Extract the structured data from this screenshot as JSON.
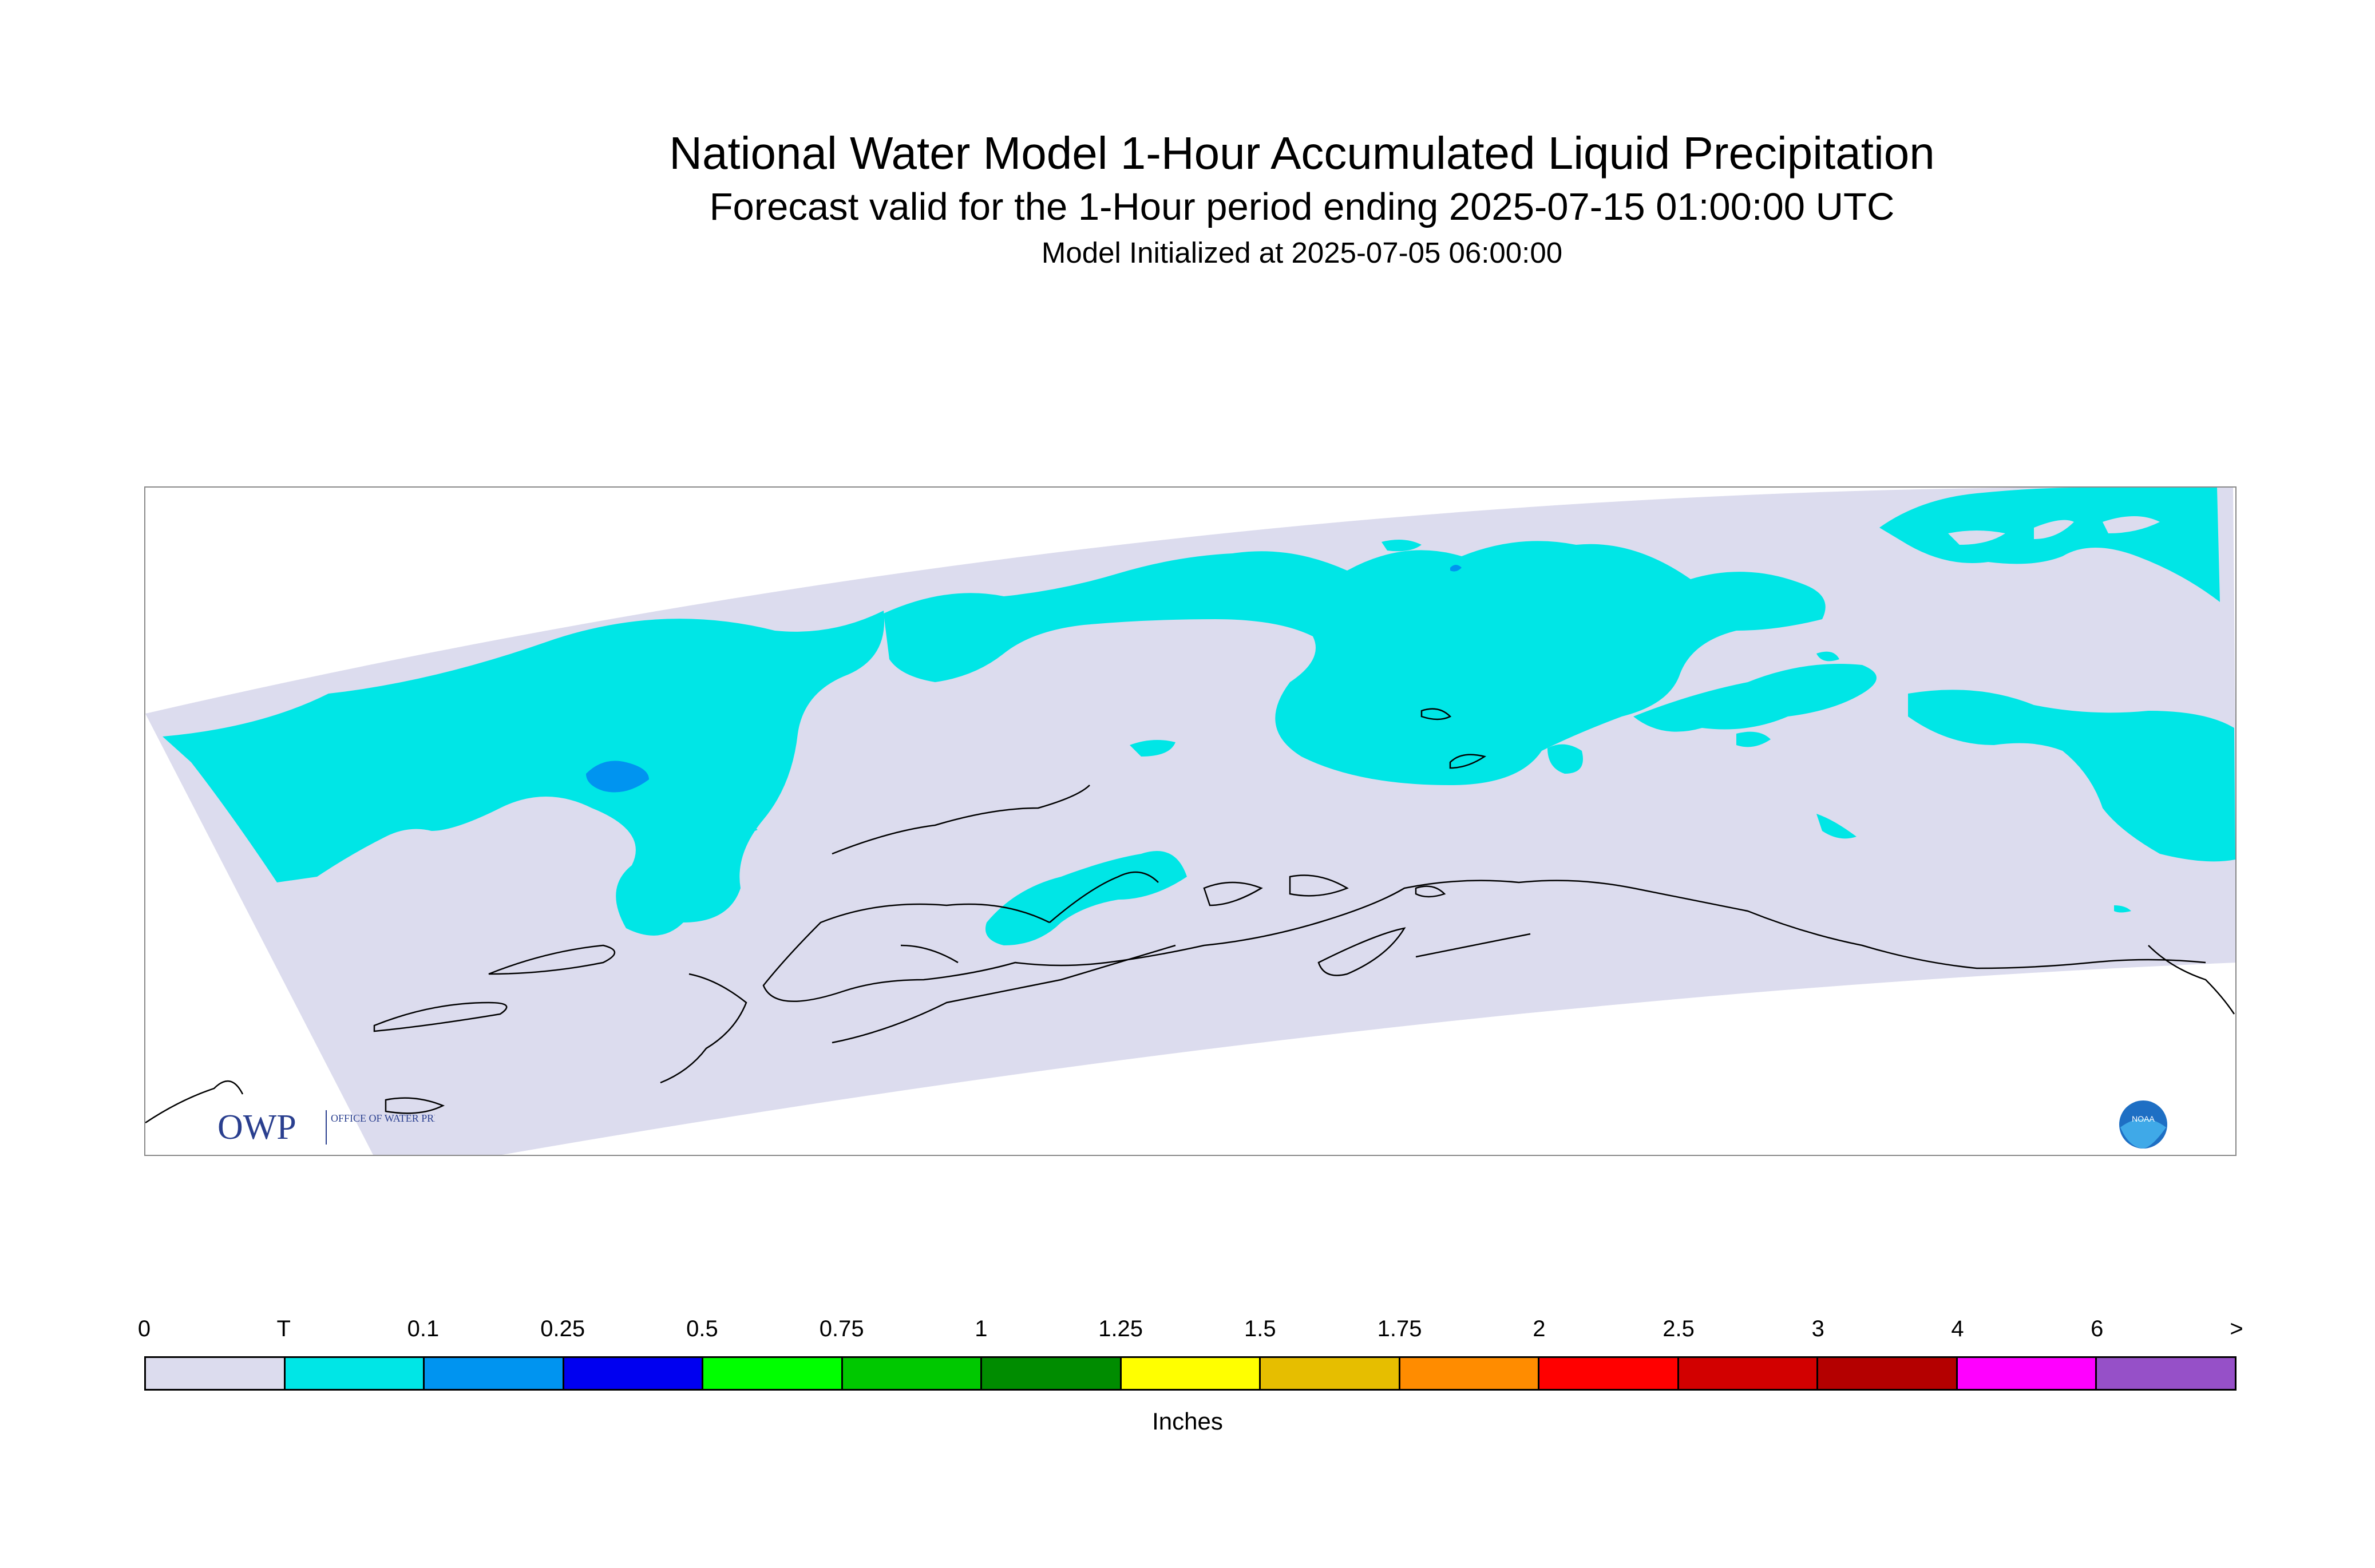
{
  "title": "National Water Model 1-Hour Accumulated Liquid Precipitation",
  "subtitle": "Forecast valid for the 1-Hour period ending 2025-07-15 01:00:00 UTC",
  "init_text": "Model Initialized at 2025-07-05 06:00:00",
  "map": {
    "region": "Alaska",
    "background_color": "#dcdcee",
    "precip_color_trace": "#00e6e6",
    "precip_color_01": "#0094f0",
    "coastline_color": "#000000",
    "logos": {
      "owp_text": "OWP",
      "owp_subtext": "OFFICE OF WATER PREDICTION",
      "noaa_text": "NOAA"
    }
  },
  "legend": {
    "labels": [
      "0",
      "T",
      "0.1",
      "0.25",
      "0.5",
      "0.75",
      "1",
      "1.25",
      "1.5",
      "1.75",
      "2",
      "2.5",
      "3",
      "4",
      "6",
      ">"
    ],
    "colors": [
      "#dcdcee",
      "#00e6e6",
      "#0094f0",
      "#0000f0",
      "#00ff00",
      "#00c800",
      "#008c00",
      "#ffff00",
      "#e6be00",
      "#ff8c00",
      "#ff0000",
      "#d20000",
      "#b40000",
      "#ff00ff",
      "#9650c8"
    ],
    "units": "Inches"
  }
}
